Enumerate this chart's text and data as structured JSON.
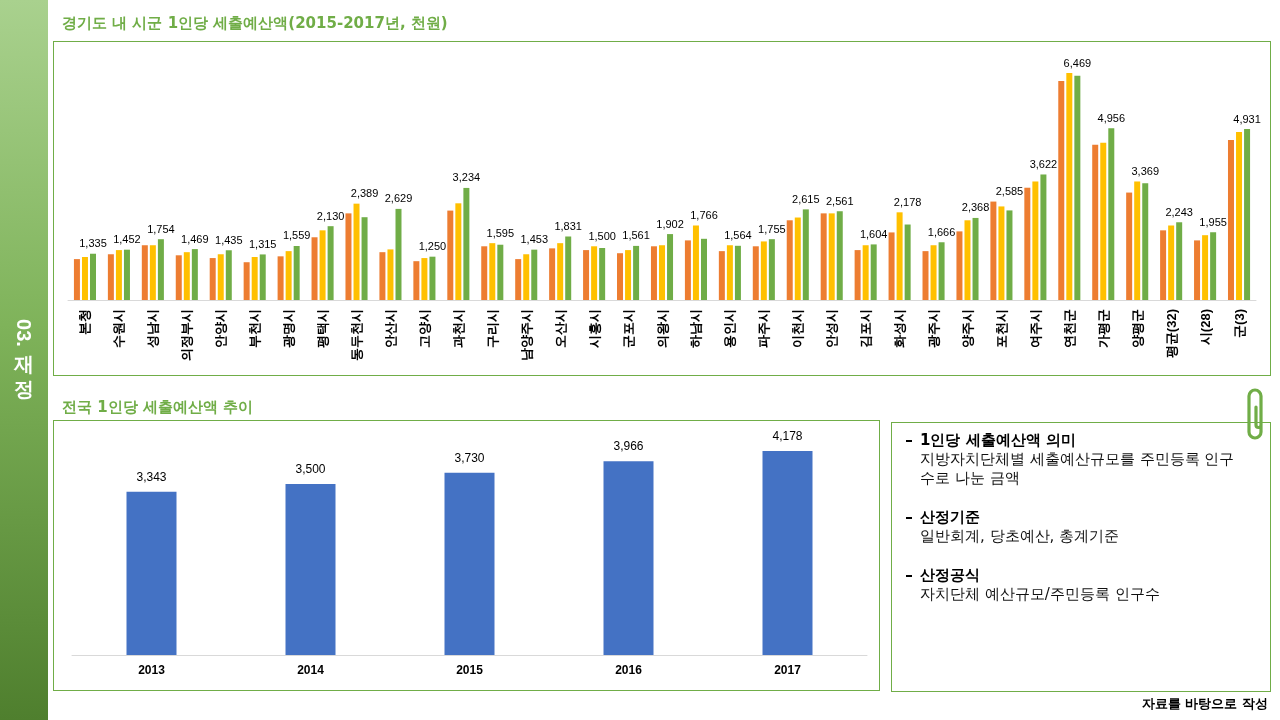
{
  "chart_data": [
    {
      "type": "bar",
      "title": "경기도 내 시군 1인당 세출예산액(2015-2017년, 천원)",
      "categories": [
        "본청",
        "수원시",
        "성남시",
        "의정부시",
        "안양시",
        "부천시",
        "광명시",
        "평택시",
        "동두천시",
        "안산시",
        "고양시",
        "과천시",
        "구리시",
        "남양주시",
        "오산시",
        "시흥시",
        "군포시",
        "의왕시",
        "하남시",
        "용인시",
        "파주시",
        "이천시",
        "안성시",
        "김포시",
        "화성시",
        "광주시",
        "양주시",
        "포천시",
        "여주시",
        "연천군",
        "가평군",
        "양평군",
        "평균(32)",
        "시(28)",
        "군(3)"
      ],
      "series": [
        {
          "color": "#ed7d31",
          "values": [
            1180,
            1320,
            1580,
            1290,
            1210,
            1090,
            1260,
            1810,
            2500,
            1380,
            1120,
            2580,
            1550,
            1180,
            1490,
            1440,
            1350,
            1550,
            1720,
            1410,
            1550,
            2300,
            2500,
            1440,
            1950,
            1410,
            1980,
            2840,
            3240,
            6320,
            4480,
            3100,
            2010,
            1720,
            4620
          ]
        },
        {
          "color": "#ffc000",
          "values": [
            1240,
            1440,
            1580,
            1380,
            1320,
            1240,
            1410,
            2010,
            2780,
            1460,
            1210,
            2790,
            1640,
            1320,
            1640,
            1550,
            1440,
            1580,
            2150,
            1580,
            1690,
            2380,
            2500,
            1580,
            2530,
            1580,
            2300,
            2700,
            3420,
            6550,
            4540,
            3420,
            2150,
            1870,
            4850
          ]
        },
        {
          "color": "#70ad47",
          "values": [
            1335,
            1452,
            1754,
            1469,
            1435,
            1315,
            1559,
            2130,
            2389,
            2629,
            1250,
            3234,
            1595,
            1453,
            1831,
            1500,
            1561,
            1902,
            1766,
            1564,
            1755,
            2615,
            2561,
            1604,
            2178,
            1666,
            2368,
            2585,
            3622,
            6469,
            4956,
            3369,
            2243,
            1955,
            4931
          ],
          "value_labels": [
            "1,335",
            "1,452",
            "1,754",
            "1,469",
            "1,435",
            "1,315",
            "1,559",
            "2,130",
            "2,389",
            "2,629",
            "1,250",
            "3,234",
            "1,595",
            "1,453",
            "1,831",
            "1,500",
            "1,561",
            "1,902",
            "1,766",
            "1,564",
            "1,755",
            "2,615",
            "2,561",
            "1,604",
            "2,178",
            "1,666",
            "2,368",
            "2,585",
            "3,622",
            "6,469",
            "4,956",
            "3,369",
            "2,243",
            "1,955",
            "4,931"
          ]
        }
      ],
      "tick_labels": "x"
    },
    {
      "type": "bar",
      "title": "전국 1인당 세출예산액 추이",
      "categories": [
        "2013",
        "2014",
        "2015",
        "2016",
        "2017"
      ],
      "values": [
        3343,
        3500,
        3730,
        3966,
        4178
      ],
      "value_labels": [
        "3,343",
        "3,500",
        "3,730",
        "3,966",
        "4,178"
      ],
      "color": "#4472c4",
      "tick_labels": "x"
    },
    {
      "type": "other",
      "annotations": [
        "1인당 세출예산액 의미",
        "지방자치단체별 세출예산규모를 주민등록 인구수로 나눈 금액",
        "산정기준",
        "일반회계, 당초예산, 총계기준",
        "산정공식",
        "자치단체 예산규모/주민등록 인구수"
      ]
    },
    {
      "type": "other",
      "title": "03. 재정",
      "annotations": [
        "자료를 바탕으로 작성"
      ]
    }
  ]
}
